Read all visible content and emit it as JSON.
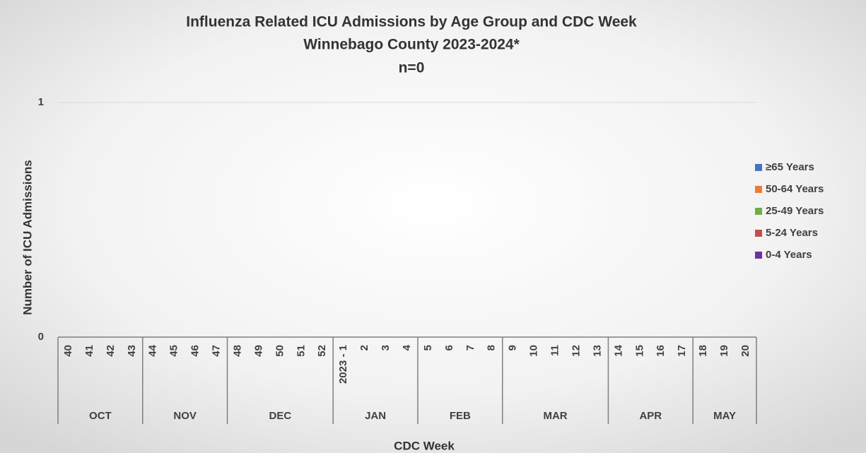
{
  "chart_data": {
    "type": "bar",
    "stacked": true,
    "title": [
      "Influenza Related ICU Admissions by Age Group and CDC Week",
      "Winnebago County 2023-2024*",
      "n=0"
    ],
    "x_label": "CDC Week",
    "y_label": "Number of ICU Admissions",
    "groups": [
      {
        "name": "OCT",
        "categories": [
          "40",
          "41",
          "42",
          "43"
        ]
      },
      {
        "name": "NOV",
        "categories": [
          "44",
          "45",
          "46",
          "47"
        ]
      },
      {
        "name": "DEC",
        "categories": [
          "48",
          "49",
          "50",
          "51",
          "52"
        ]
      },
      {
        "name": "JAN",
        "categories": [
          "2023 - 1",
          "2",
          "3",
          "4"
        ]
      },
      {
        "name": "FEB",
        "categories": [
          "5",
          "6",
          "7",
          "8"
        ]
      },
      {
        "name": "MAR",
        "categories": [
          "9",
          "10",
          "11",
          "12",
          "13"
        ]
      },
      {
        "name": "APR",
        "categories": [
          "14",
          "15",
          "16",
          "17"
        ]
      },
      {
        "name": "MAY",
        "categories": [
          "18",
          "19",
          "20"
        ]
      }
    ],
    "series": [
      {
        "name": "≥65 Years",
        "color": "#4472c4",
        "values": [
          0,
          0,
          0,
          0,
          0,
          0,
          0,
          0,
          0,
          0,
          0,
          0,
          0,
          0,
          0,
          0,
          0,
          0,
          0,
          0,
          0,
          0,
          0,
          0,
          0,
          0,
          0,
          0,
          0,
          0,
          0,
          0,
          0
        ]
      },
      {
        "name": "50-64 Years",
        "color": "#ed7d31",
        "values": [
          0,
          0,
          0,
          0,
          0,
          0,
          0,
          0,
          0,
          0,
          0,
          0,
          0,
          0,
          0,
          0,
          0,
          0,
          0,
          0,
          0,
          0,
          0,
          0,
          0,
          0,
          0,
          0,
          0,
          0,
          0,
          0,
          0
        ]
      },
      {
        "name": "25-49 Years",
        "color": "#70ad47",
        "values": [
          0,
          0,
          0,
          0,
          0,
          0,
          0,
          0,
          0,
          0,
          0,
          0,
          0,
          0,
          0,
          0,
          0,
          0,
          0,
          0,
          0,
          0,
          0,
          0,
          0,
          0,
          0,
          0,
          0,
          0,
          0,
          0,
          0
        ]
      },
      {
        "name": "5-24 Years",
        "color": "#c0504d",
        "values": [
          0,
          0,
          0,
          0,
          0,
          0,
          0,
          0,
          0,
          0,
          0,
          0,
          0,
          0,
          0,
          0,
          0,
          0,
          0,
          0,
          0,
          0,
          0,
          0,
          0,
          0,
          0,
          0,
          0,
          0,
          0,
          0,
          0
        ]
      },
      {
        "name": "0-4 Years",
        "color": "#7030a0",
        "values": [
          0,
          0,
          0,
          0,
          0,
          0,
          0,
          0,
          0,
          0,
          0,
          0,
          0,
          0,
          0,
          0,
          0,
          0,
          0,
          0,
          0,
          0,
          0,
          0,
          0,
          0,
          0,
          0,
          0,
          0,
          0,
          0,
          0
        ]
      }
    ],
    "ylim": [
      0,
      1
    ],
    "yticks": [
      0,
      1
    ],
    "grid": true,
    "legend": "right"
  }
}
